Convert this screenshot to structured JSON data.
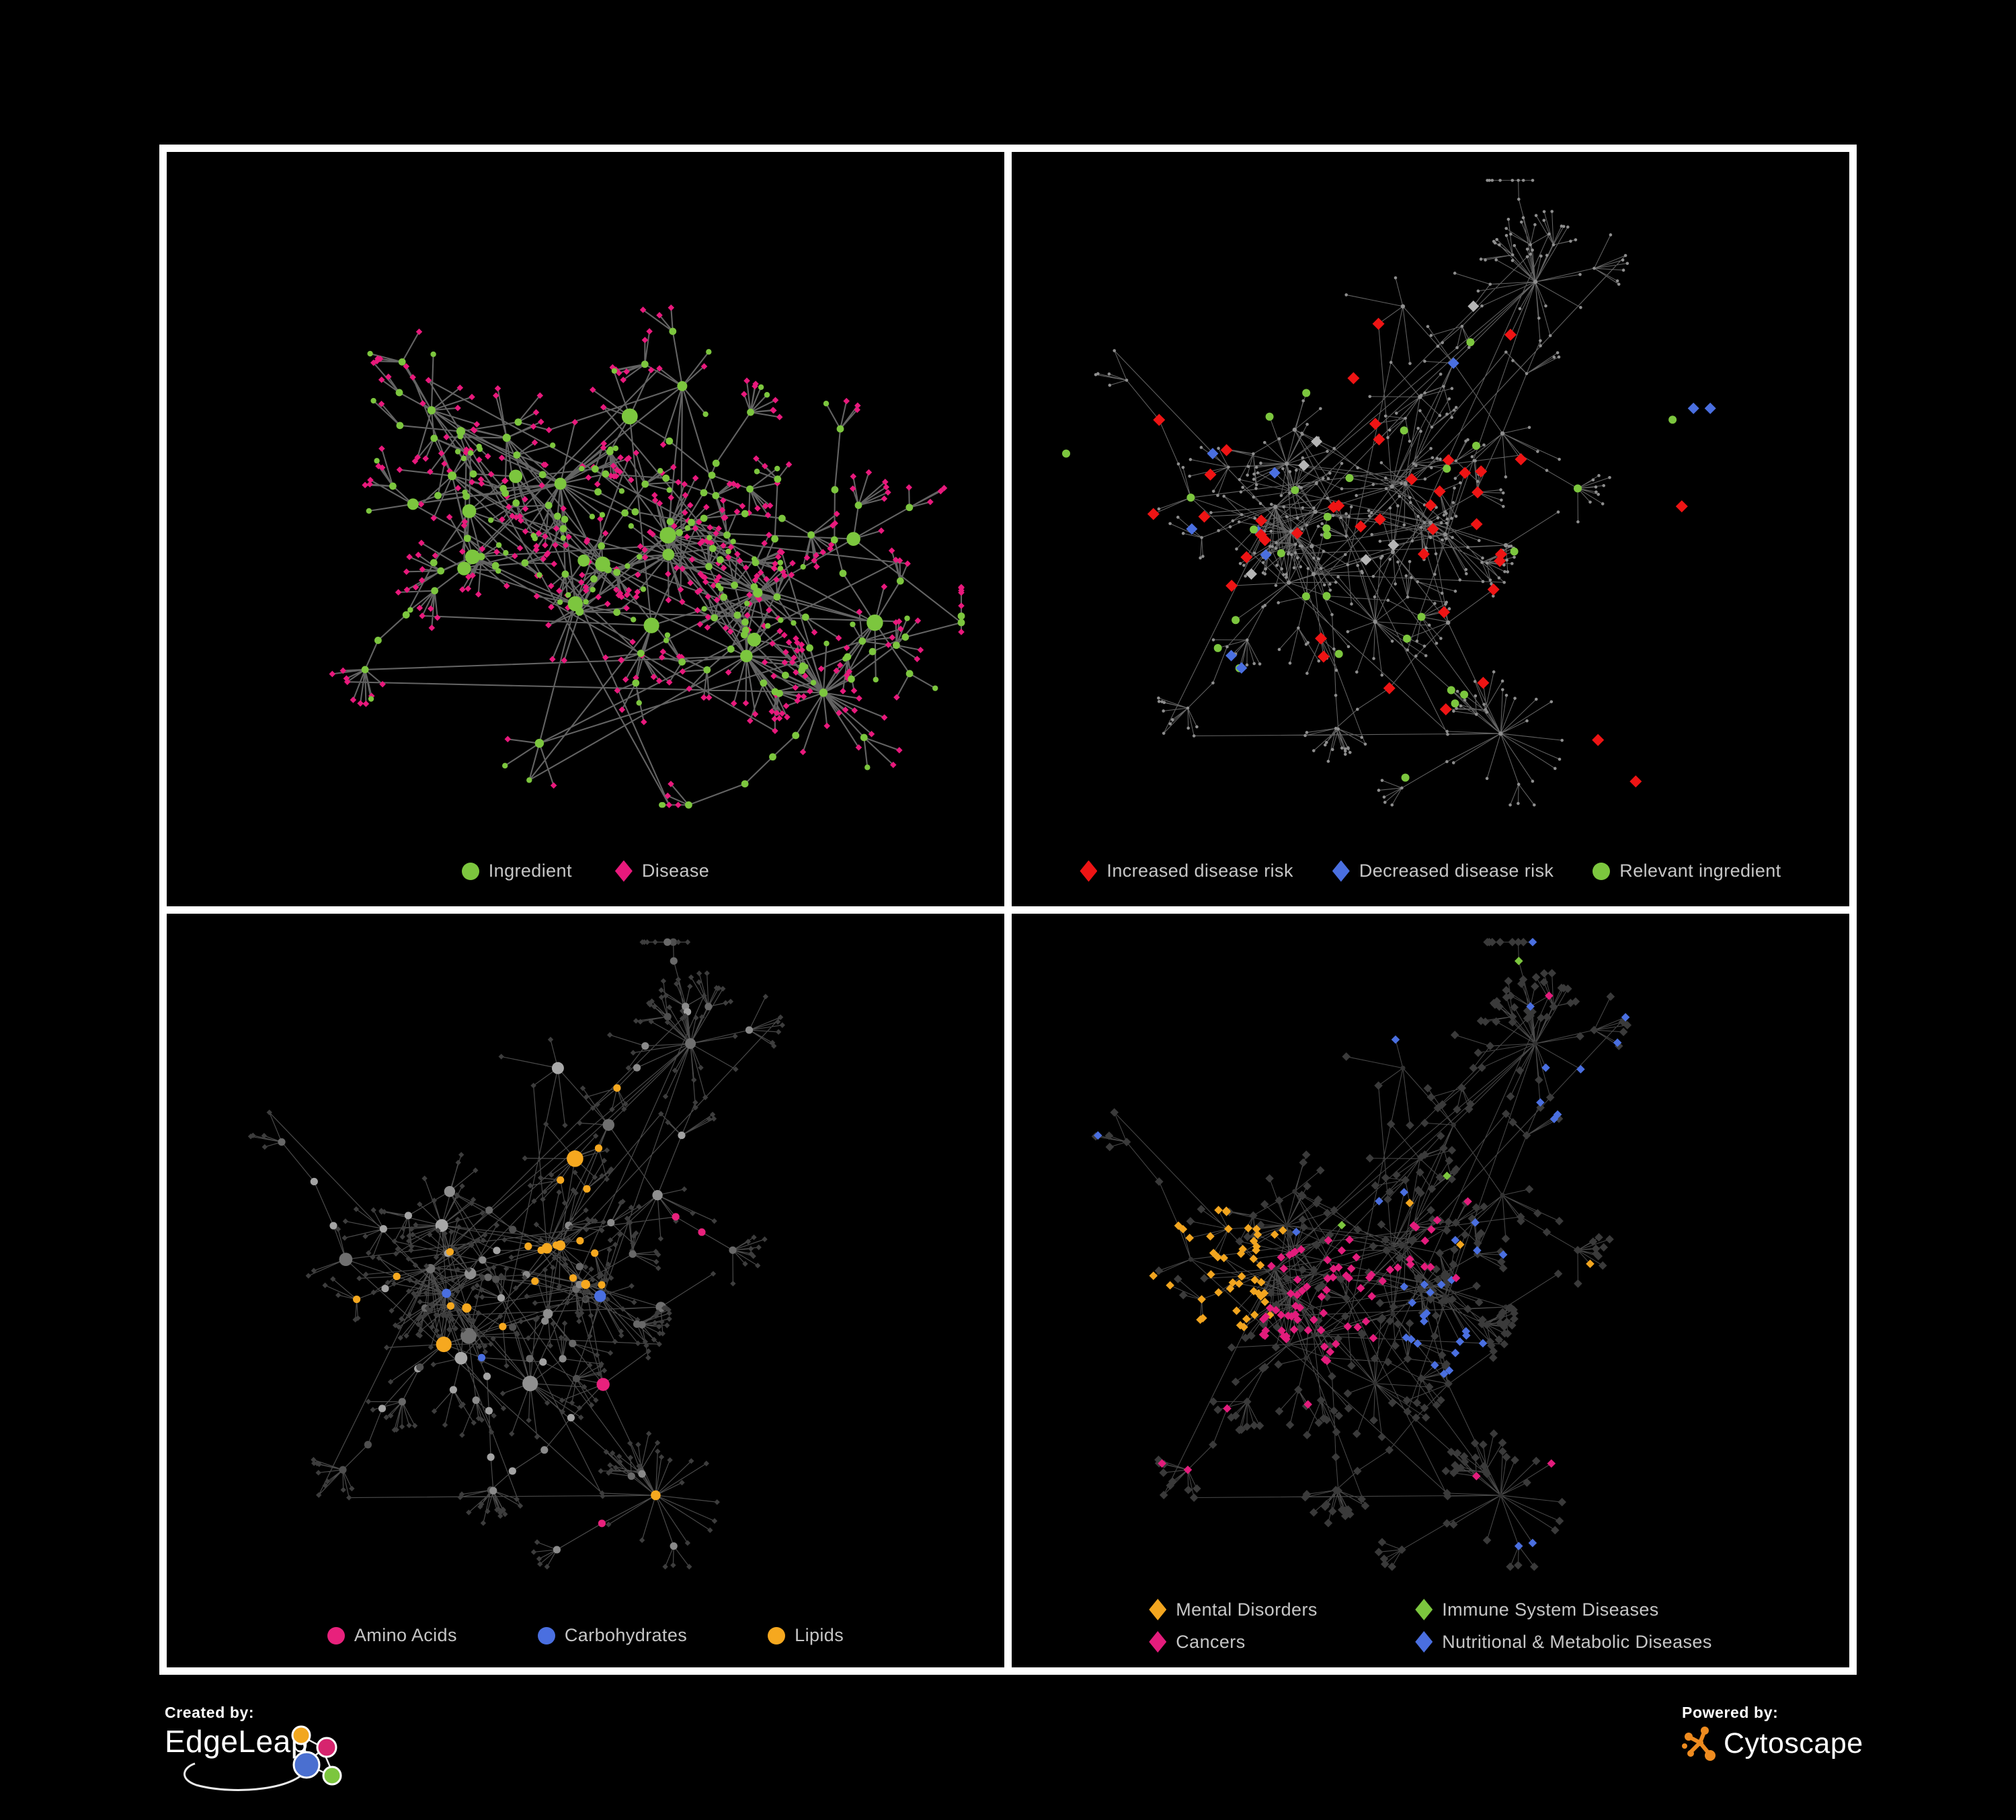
{
  "app": {
    "background": "#000000",
    "frame_border": "#ffffff"
  },
  "colors": {
    "ingredient_green": "#7cc63e",
    "disease_pink": "#e8197c",
    "risk_red": "#ee1414",
    "risk_blue": "#4a6fe0",
    "neutral_gray_diamond": "#b5b5b5",
    "lipid_orange": "#f6a81f",
    "mental_orange": "#f2a51f",
    "cancer_magenta": "#e31c7c",
    "metabolic_blue": "#4a6fe0",
    "immune_green": "#7cc63e"
  },
  "panels": [
    {
      "name": "ingredient-disease-network",
      "legend": {
        "items": [
          {
            "shape": "circle",
            "color": "#7cc63e",
            "label": "Ingredient"
          },
          {
            "shape": "diamond",
            "color": "#e8197c",
            "label": "Disease"
          }
        ]
      },
      "network": {
        "seed": 913,
        "hubs": 26,
        "max_kids": 28,
        "sub_prob": 0.15,
        "chain_prob": 0.09,
        "extra_edges": 48,
        "edge": {
          "color": "#6e6e6e",
          "width": 2.1,
          "opacity": 0.9
        },
        "coloring": {
          "mode": "roles",
          "hub": {
            "shape": "circle",
            "color": "#7cc63e"
          },
          "mid": {
            "shape": "circle",
            "color": "#7cc63e",
            "size": 5.4
          },
          "leaf": {
            "shape": "diamond",
            "color": "#e8197c",
            "size": 4.8
          },
          "leaf_alt": {
            "prob": 0.17,
            "shape": "circle",
            "color": "#7cc63e",
            "size": 4.2
          }
        }
      }
    },
    {
      "name": "disease-risk-network",
      "legend": {
        "items": [
          {
            "shape": "diamond",
            "color": "#ee1414",
            "label": "Increased disease risk"
          },
          {
            "shape": "diamond",
            "color": "#4a6fe0",
            "label": "Decreased disease risk"
          },
          {
            "shape": "circle",
            "color": "#7cc63e",
            "label": "Relevant ingredient"
          }
        ]
      },
      "network": {
        "seed": 1337,
        "hubs": 24,
        "max_kids": 26,
        "sub_prob": 0.13,
        "chain_prob": 0.085,
        "extra_edges": 30,
        "edge": {
          "color": "#7c7c7c",
          "width": 1.05,
          "opacity": 0.8
        },
        "coloring": {
          "mode": "highlight",
          "base": {
            "color": "#8e8e8e",
            "r_leaf": 2.3,
            "r_hub": 3.2
          },
          "zone": {
            "fx": 0.41,
            "fy": 0.46,
            "r": 0.3,
            "prob": 0.15
          },
          "types": [
            {
              "w": 0.4,
              "shape": "diamond",
              "color": "#ee1414",
              "size": 9.0
            },
            {
              "w": 0.36,
              "shape": "circle",
              "color": "#7cc63e",
              "size": 6.0
            },
            {
              "w": 0.12,
              "shape": "diamond",
              "color": "#4a6fe0",
              "size": 8.5
            },
            {
              "w": 0.12,
              "shape": "diamond",
              "color": "#b5b5b5",
              "size": 8.5
            }
          ],
          "forced": [
            {
              "fx": 0.814,
              "fy": 0.34,
              "t": 2
            },
            {
              "fx": 0.834,
              "fy": 0.34,
              "t": 2
            },
            {
              "fx": 0.24,
              "fy": 0.4,
              "t": 2
            },
            {
              "fx": 0.215,
              "fy": 0.5,
              "t": 2
            },
            {
              "fx": 0.7,
              "fy": 0.78,
              "t": 0
            },
            {
              "fx": 0.745,
              "fy": 0.835,
              "t": 0
            },
            {
              "fx": 0.8,
              "fy": 0.47,
              "t": 0
            },
            {
              "fx": 0.408,
              "fy": 0.3,
              "t": 0
            },
            {
              "fx": 0.789,
              "fy": 0.355,
              "t": 1
            },
            {
              "fx": 0.065,
              "fy": 0.4,
              "t": 1
            },
            {
              "fx": 0.47,
              "fy": 0.83,
              "t": 1
            }
          ]
        }
      }
    },
    {
      "name": "nutrient-class-network",
      "legend": {
        "items": [
          {
            "shape": "circle",
            "color": "#e8217c",
            "label": "Amino Acids"
          },
          {
            "shape": "circle",
            "color": "#4a6fe0",
            "label": "Carbohydrates"
          },
          {
            "shape": "circle",
            "color": "#f6a81f",
            "label": "Lipids"
          }
        ]
      },
      "network": {
        "seed": 1337,
        "hubs": 24,
        "max_kids": 26,
        "sub_prob": 0.13,
        "chain_prob": 0.085,
        "extra_edges": 30,
        "edge": {
          "color": "#787878",
          "width": 1.2,
          "opacity": 0.62
        },
        "coloring": {
          "mode": "regions",
          "hub": {
            "shape": "circle",
            "color": [
              "#a8a8a8",
              "#8f8f8f",
              "#6f6f6f"
            ]
          },
          "mid": {
            "shape": "circle",
            "color": [
              "#a3a3a3",
              "#8a8a8a",
              "#686868",
              "#4f4f4f"
            ],
            "size": 5.6
          },
          "leaf": {
            "shape": "diamond",
            "color": "#3d3d3d",
            "size": 4.2
          },
          "region_roles": [
            "mid",
            "hub"
          ],
          "regions": [
            {
              "fx": 0.52,
              "fy": 0.33,
              "r": 0.075,
              "p": 0.65,
              "color": "#f6a81f"
            },
            {
              "fx": 0.47,
              "fy": 0.47,
              "r": 0.06,
              "p": 0.5,
              "color": "#f6a81f"
            },
            {
              "fx": 0.62,
              "fy": 0.29,
              "r": 0.05,
              "p": 0.45,
              "color": "#f6a81f"
            },
            {
              "fx": 0.36,
              "fy": 0.52,
              "r": 0.06,
              "p": 0.35,
              "color": "#f6a81f"
            },
            {
              "fx": 0.545,
              "fy": 0.31,
              "r": 0.04,
              "p": 0.5,
              "color": "#4a6fe0"
            },
            {
              "fx": 0.68,
              "fy": 0.64,
              "r": 0.08,
              "p": 0.22,
              "color": "#e8217c"
            }
          ],
          "scatter": [
            {
              "p": 0.035,
              "color": "#f6a81f"
            },
            {
              "p": 0.015,
              "color": "#4a6fe0"
            },
            {
              "p": 0.03,
              "color": "#e8217c"
            }
          ]
        }
      }
    },
    {
      "name": "disease-category-network",
      "legend": {
        "items": [
          {
            "shape": "diamond",
            "color": "#f2a51f",
            "label": "Mental Disorders"
          },
          {
            "shape": "diamond",
            "color": "#7cc63e",
            "label": "Immune System Diseases"
          },
          {
            "shape": "diamond",
            "color": "#e31c7c",
            "label": "Cancers"
          },
          {
            "shape": "diamond",
            "color": "#4a6fe0",
            "label": "Nutritional & Metabolic Diseases"
          }
        ]
      },
      "network": {
        "seed": 1337,
        "hubs": 24,
        "max_kids": 26,
        "sub_prob": 0.13,
        "chain_prob": 0.085,
        "extra_edges": 30,
        "edge": {
          "color": "#5a5a5a",
          "width": 1.05,
          "opacity": 0.8
        },
        "coloring": {
          "mode": "regions",
          "hub": {
            "shape": "circle",
            "color": "#323232",
            "size": 3.6
          },
          "mid": {
            "shape": "diamond",
            "color": "#3a3a3a",
            "size": 6.3
          },
          "leaf": {
            "shape": "diamond",
            "color": "#3a3a3a",
            "size": 6.3
          },
          "region_roles": [
            "mid",
            "leaf"
          ],
          "regions": [
            {
              "fx": 0.21,
              "fy": 0.48,
              "r": 0.1,
              "p": 0.8,
              "color": "#f2a51f"
            },
            {
              "fx": 0.29,
              "fy": 0.41,
              "r": 0.06,
              "p": 0.4,
              "color": "#f2a51f"
            },
            {
              "fx": 0.37,
              "fy": 0.51,
              "r": 0.085,
              "p": 0.55,
              "color": "#e31c7c"
            },
            {
              "fx": 0.46,
              "fy": 0.44,
              "r": 0.05,
              "p": 0.35,
              "color": "#e31c7c"
            },
            {
              "fx": 0.93,
              "fy": 0.27,
              "r": 0.04,
              "p": 0.75,
              "color": "#e31c7c"
            },
            {
              "fx": 0.52,
              "fy": 0.57,
              "r": 0.05,
              "p": 0.7,
              "color": "#4a6fe0"
            },
            {
              "fx": 0.74,
              "fy": 0.22,
              "r": 0.12,
              "p": 0.3,
              "color": "#4a6fe0"
            },
            {
              "fx": 0.47,
              "fy": 0.09,
              "r": 0.1,
              "p": 0.32,
              "color": "#4a6fe0"
            },
            {
              "fx": 0.87,
              "fy": 0.4,
              "r": 0.06,
              "p": 0.4,
              "color": "#4a6fe0"
            },
            {
              "fx": 0.3,
              "fy": 0.07,
              "r": 0.06,
              "p": 0.35,
              "color": "#4a6fe0"
            },
            {
              "fx": 0.63,
              "fy": 0.33,
              "r": 0.05,
              "p": 0.3,
              "color": "#4a6fe0"
            }
          ],
          "scatter": [
            {
              "p": 0.04,
              "color": "#4a6fe0"
            },
            {
              "p": 0.018,
              "color": "#e31c7c"
            },
            {
              "p": 0.012,
              "color": "#7cc63e"
            },
            {
              "p": 0.012,
              "color": "#f2a51f"
            }
          ]
        }
      }
    }
  ],
  "footer": {
    "created_by": {
      "label": "Created by:",
      "brand": "EdgeLeap"
    },
    "powered_by": {
      "label": "Powered by:",
      "brand": "Cytoscape"
    },
    "edgeleap_colors": {
      "orange": "#f2a71e",
      "pink": "#d6246e",
      "blue": "#4a6fd0",
      "green": "#7cc63e"
    },
    "cytoscape_orange": "#ee8b1f"
  }
}
